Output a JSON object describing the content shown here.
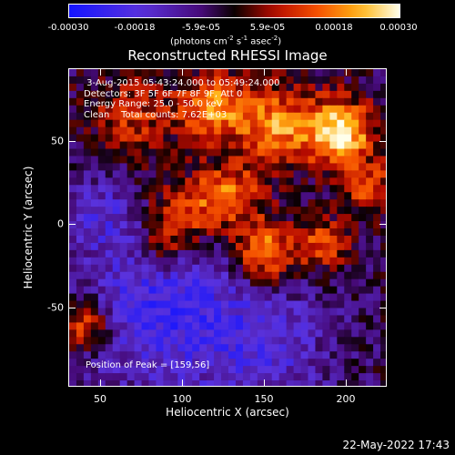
{
  "colorbar": {
    "ticks": [
      "-0.00030",
      "-0.00018",
      "-5.9e-05",
      "5.9e-05",
      "0.00018",
      "0.00030"
    ],
    "units": "(photons cm",
    "units_exp1": "-2",
    "units_mid": " s",
    "units_exp2": "-1",
    "units_mid2": " asec",
    "units_exp3": "-2",
    "units_end": ")"
  },
  "title": "Reconstructed RHESSI Image",
  "info": {
    "line1": " 3-Aug-2015 05:43:24.000 to 05:49:24.000",
    "line2": "Detectors: 3F 5F 6F 7F 8F 9F, Att 0",
    "line3": "Energy Range: 25.0 - 50.0 keV",
    "line4": "Clean    Total counts: 7.62E+03"
  },
  "peak": "Position of Peak = [159,56]",
  "axes": {
    "xlabel": "Heliocentric X (arcsec)",
    "ylabel": "Heliocentric Y (arcsec)",
    "xticks": [
      "50",
      "100",
      "150",
      "200"
    ],
    "yticks": [
      "50",
      "0",
      "-50"
    ]
  },
  "datestamp": "22-May-2022 17:43"
}
